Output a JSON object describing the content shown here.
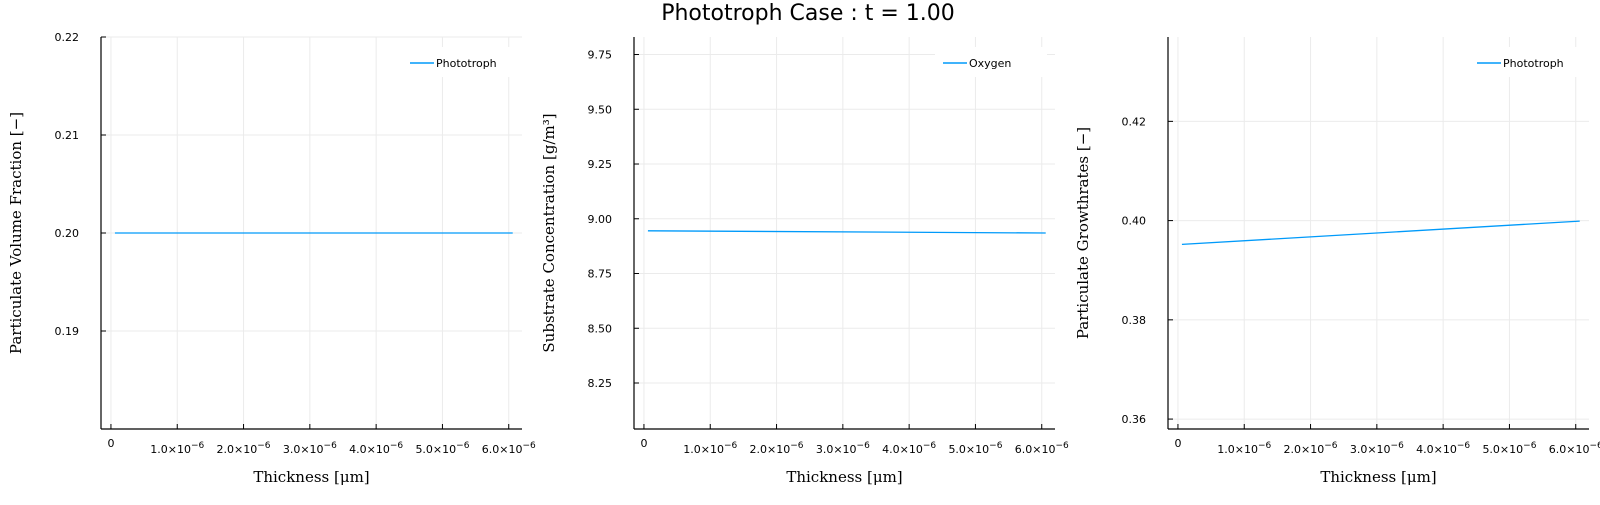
{
  "title": "Phototroph Case : t = 1.00",
  "colors": {
    "series": "#009AFA",
    "grid": "#EBEBEB",
    "axis": "#000000"
  },
  "chart_data": [
    {
      "type": "line",
      "xlabel": "Thickness [μm]",
      "ylabel": "Particulate Volume Fraction [−]",
      "xlim": [
        -1.5e-07,
        6.2e-06
      ],
      "ylim": [
        0.18,
        0.22
      ],
      "xticks": [
        0,
        1e-06,
        2e-06,
        3e-06,
        4e-06,
        5e-06,
        6e-06
      ],
      "xtick_labels": [
        {
          "mantissa": "0",
          "exp": ""
        },
        {
          "mantissa": "1.0×10",
          "exp": "−6"
        },
        {
          "mantissa": "2.0×10",
          "exp": "−6"
        },
        {
          "mantissa": "3.0×10",
          "exp": "−6"
        },
        {
          "mantissa": "4.0×10",
          "exp": "−6"
        },
        {
          "mantissa": "5.0×10",
          "exp": "−6"
        },
        {
          "mantissa": "6.0×10",
          "exp": "−6"
        }
      ],
      "yticks": [
        0.19,
        0.2,
        0.21,
        0.22
      ],
      "ytick_labels": [
        "0.19",
        "0.20",
        "0.21",
        "0.22"
      ],
      "grid": true,
      "legend_position": "top-right",
      "series": [
        {
          "name": "Phototroph",
          "x": [
            6e-08,
            6.06e-06
          ],
          "y": [
            0.2,
            0.2
          ]
        }
      ]
    },
    {
      "type": "line",
      "xlabel": "Thickness [μm]",
      "ylabel": "Substrate Concentration [g/m³]",
      "xlim": [
        -1.5e-07,
        6.2e-06
      ],
      "ylim": [
        8.04,
        9.83
      ],
      "xticks": [
        0,
        1e-06,
        2e-06,
        3e-06,
        4e-06,
        5e-06,
        6e-06
      ],
      "xtick_labels": [
        {
          "mantissa": "0",
          "exp": ""
        },
        {
          "mantissa": "1.0×10",
          "exp": "−6"
        },
        {
          "mantissa": "2.0×10",
          "exp": "−6"
        },
        {
          "mantissa": "3.0×10",
          "exp": "−6"
        },
        {
          "mantissa": "4.0×10",
          "exp": "−6"
        },
        {
          "mantissa": "5.0×10",
          "exp": "−6"
        },
        {
          "mantissa": "6.0×10",
          "exp": "−6"
        }
      ],
      "yticks": [
        8.25,
        8.5,
        8.75,
        9.0,
        9.25,
        9.5,
        9.75
      ],
      "ytick_labels": [
        "8.25",
        "8.50",
        "8.75",
        "9.00",
        "9.25",
        "9.50",
        "9.75"
      ],
      "grid": true,
      "legend_position": "top-right",
      "series": [
        {
          "name": "Oxygen",
          "x": [
            6e-08,
            6.06e-06
          ],
          "y": [
            8.945,
            8.935
          ]
        }
      ]
    },
    {
      "type": "line",
      "xlabel": "Thickness [μm]",
      "ylabel": "Particulate Growthrates [−]",
      "xlim": [
        -1.5e-07,
        6.2e-06
      ],
      "ylim": [
        0.358,
        0.437
      ],
      "xticks": [
        0,
        1e-06,
        2e-06,
        3e-06,
        4e-06,
        5e-06,
        6e-06
      ],
      "xtick_labels": [
        {
          "mantissa": "0",
          "exp": ""
        },
        {
          "mantissa": "1.0×10",
          "exp": "−6"
        },
        {
          "mantissa": "2.0×10",
          "exp": "−6"
        },
        {
          "mantissa": "3.0×10",
          "exp": "−6"
        },
        {
          "mantissa": "4.0×10",
          "exp": "−6"
        },
        {
          "mantissa": "5.0×10",
          "exp": "−6"
        },
        {
          "mantissa": "6.0×10",
          "exp": "−6"
        }
      ],
      "yticks": [
        0.36,
        0.38,
        0.4,
        0.42
      ],
      "ytick_labels": [
        "0.36",
        "0.38",
        "0.40",
        "0.42"
      ],
      "grid": true,
      "legend_position": "top-right",
      "series": [
        {
          "name": "Phototroph",
          "x": [
            6e-08,
            6.06e-06
          ],
          "y": [
            0.3952,
            0.3999
          ]
        }
      ]
    }
  ]
}
